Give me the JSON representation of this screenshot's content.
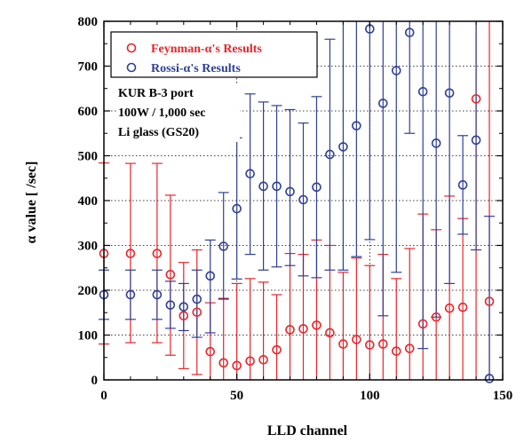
{
  "chart_data": {
    "type": "scatter",
    "xlabel": "LLD channel",
    "ylabel": "α value [ /sec]",
    "xlim": [
      0,
      150
    ],
    "ylim": [
      0,
      800
    ],
    "x_ticks": [
      "0",
      "50",
      "100",
      "150"
    ],
    "y_ticks": [
      "0",
      "100",
      "200",
      "300",
      "400",
      "500",
      "600",
      "700",
      "800"
    ],
    "grid": "dotted",
    "legend_position": "top-left",
    "annotation_lines": [
      "KUR B-3 port",
      "100W / 1,000 sec",
      "Li glass (GS20)"
    ],
    "series": [
      {
        "name": "Feynman-α's Results",
        "color": "#e8242a",
        "marker": "open-circle",
        "points": [
          {
            "x": 0,
            "y": 282,
            "lo": 80,
            "hi": 484
          },
          {
            "x": 10,
            "y": 282,
            "lo": 83,
            "hi": 483
          },
          {
            "x": 20,
            "y": 282,
            "lo": 83,
            "hi": 483
          },
          {
            "x": 25,
            "y": 235,
            "lo": 55,
            "hi": 412
          },
          {
            "x": 30,
            "y": 143,
            "lo": 25,
            "hi": 262
          },
          {
            "x": 35,
            "y": 151,
            "lo": 12,
            "hi": 290
          },
          {
            "x": 40,
            "y": 63,
            "lo": 0,
            "hi": 172
          },
          {
            "x": 45,
            "y": 38,
            "lo": 0,
            "hi": 182
          },
          {
            "x": 50,
            "y": 32,
            "lo": 0,
            "hi": 215
          },
          {
            "x": 55,
            "y": 42,
            "lo": 0,
            "hi": 226
          },
          {
            "x": 60,
            "y": 45,
            "lo": 0,
            "hi": 218
          },
          {
            "x": 65,
            "y": 67,
            "lo": 0,
            "hi": 190
          },
          {
            "x": 70,
            "y": 112,
            "lo": 0,
            "hi": 282
          },
          {
            "x": 75,
            "y": 114,
            "lo": 0,
            "hi": 280
          },
          {
            "x": 80,
            "y": 122,
            "lo": 0,
            "hi": 312
          },
          {
            "x": 85,
            "y": 105,
            "lo": 0,
            "hi": 300
          },
          {
            "x": 90,
            "y": 80,
            "lo": 0,
            "hi": 240
          },
          {
            "x": 95,
            "y": 90,
            "lo": 0,
            "hi": 272
          },
          {
            "x": 100,
            "y": 78,
            "lo": 0,
            "hi": 255
          },
          {
            "x": 105,
            "y": 80,
            "lo": 0,
            "hi": 280
          },
          {
            "x": 110,
            "y": 64,
            "lo": 0,
            "hi": 226
          },
          {
            "x": 115,
            "y": 70,
            "lo": 0,
            "hi": 293
          },
          {
            "x": 120,
            "y": 125,
            "lo": 0,
            "hi": 370
          },
          {
            "x": 125,
            "y": 140,
            "lo": 0,
            "hi": 335
          },
          {
            "x": 130,
            "y": 160,
            "lo": 0,
            "hi": 410
          },
          {
            "x": 135,
            "y": 162,
            "lo": 0,
            "hi": 360
          },
          {
            "x": 140,
            "y": 627,
            "lo": 0,
            "hi": 800
          },
          {
            "x": 145,
            "y": 175,
            "lo": 0,
            "hi": 800
          }
        ]
      },
      {
        "name": "Rossi-α's Results",
        "color": "#2e3f96",
        "marker": "open-circle",
        "points": [
          {
            "x": 0,
            "y": 190,
            "lo": 135,
            "hi": 245
          },
          {
            "x": 10,
            "y": 190,
            "lo": 135,
            "hi": 245
          },
          {
            "x": 20,
            "y": 190,
            "lo": 135,
            "hi": 245
          },
          {
            "x": 25,
            "y": 167,
            "lo": 115,
            "hi": 220
          },
          {
            "x": 30,
            "y": 163,
            "lo": 110,
            "hi": 215
          },
          {
            "x": 35,
            "y": 180,
            "lo": 95,
            "hi": 245
          },
          {
            "x": 40,
            "y": 232,
            "lo": 105,
            "hi": 312
          },
          {
            "x": 45,
            "y": 298,
            "lo": 180,
            "hi": 418
          },
          {
            "x": 50,
            "y": 382,
            "lo": 225,
            "hi": 540
          },
          {
            "x": 55,
            "y": 460,
            "lo": 280,
            "hi": 638
          },
          {
            "x": 60,
            "y": 432,
            "lo": 245,
            "hi": 620
          },
          {
            "x": 65,
            "y": 432,
            "lo": 252,
            "hi": 612
          },
          {
            "x": 70,
            "y": 420,
            "lo": 255,
            "hi": 603
          },
          {
            "x": 75,
            "y": 402,
            "lo": 232,
            "hi": 573
          },
          {
            "x": 80,
            "y": 430,
            "lo": 228,
            "hi": 632
          },
          {
            "x": 85,
            "y": 503,
            "lo": 245,
            "hi": 760
          },
          {
            "x": 90,
            "y": 520,
            "lo": 245,
            "hi": 800
          },
          {
            "x": 95,
            "y": 567,
            "lo": 275,
            "hi": 800
          },
          {
            "x": 100,
            "y": 783,
            "lo": 313,
            "hi": 800
          },
          {
            "x": 105,
            "y": 617,
            "lo": 143,
            "hi": 800
          },
          {
            "x": 110,
            "y": 690,
            "lo": 240,
            "hi": 800
          },
          {
            "x": 115,
            "y": 775,
            "lo": 550,
            "hi": 800
          },
          {
            "x": 120,
            "y": 643,
            "lo": 70,
            "hi": 800
          },
          {
            "x": 125,
            "y": 528,
            "lo": 140,
            "hi": 800
          },
          {
            "x": 130,
            "y": 640,
            "lo": 215,
            "hi": 800
          },
          {
            "x": 135,
            "y": 435,
            "lo": 325,
            "hi": 545
          },
          {
            "x": 140,
            "y": 535,
            "lo": 290,
            "hi": 800
          },
          {
            "x": 145,
            "y": 3,
            "lo": 0,
            "hi": 365
          }
        ]
      }
    ]
  }
}
